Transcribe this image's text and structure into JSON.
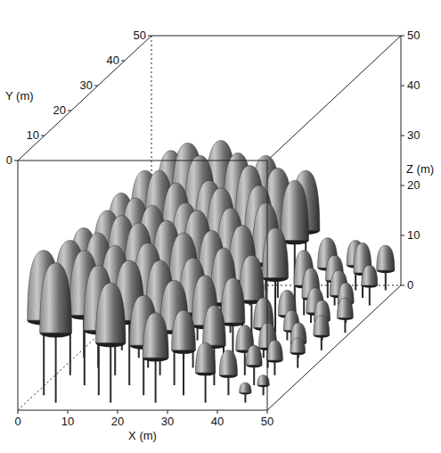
{
  "chart_data": {
    "type": "scatter3d",
    "xlabel": "X (m)",
    "ylabel": "Y (m)",
    "zlabel": "Z (m)",
    "xlim": [
      0,
      50
    ],
    "ylim": [
      0,
      50
    ],
    "zlim": [
      0,
      50
    ],
    "xticks": [
      0,
      10,
      20,
      30,
      40,
      50
    ],
    "yticks": [
      0,
      10,
      20,
      30,
      40,
      50
    ],
    "zticks": [
      0,
      10,
      20,
      30,
      40,
      50
    ],
    "trees": [
      {
        "x": 5,
        "y": 48,
        "height": 28,
        "crown_base": 14,
        "crown_radius": 3
      },
      {
        "x": 15,
        "y": 48,
        "height": 30,
        "crown_base": 15,
        "crown_radius": 3.2
      },
      {
        "x": 24,
        "y": 48,
        "height": 27,
        "crown_base": 14,
        "crown_radius": 3
      },
      {
        "x": 32,
        "y": 48,
        "height": 24,
        "crown_base": 12,
        "crown_radius": 2.8
      },
      {
        "x": 42,
        "y": 48,
        "height": 10,
        "crown_base": 5,
        "crown_radius": 1.8
      },
      {
        "x": 48,
        "y": 48,
        "height": 9,
        "crown_base": 4,
        "crown_radius": 1.8
      },
      {
        "x": 10,
        "y": 45,
        "height": 31,
        "crown_base": 16,
        "crown_radius": 3.3
      },
      {
        "x": 20,
        "y": 45,
        "height": 29,
        "crown_base": 15,
        "crown_radius": 3
      },
      {
        "x": 28,
        "y": 45,
        "height": 26,
        "crown_base": 13,
        "crown_radius": 3
      },
      {
        "x": 38,
        "y": 45,
        "height": 12,
        "crown_base": 6,
        "crown_radius": 2
      },
      {
        "x": 45,
        "y": 45,
        "height": 11,
        "crown_base": 5,
        "crown_radius": 1.8
      },
      {
        "x": 3,
        "y": 42,
        "height": 27,
        "crown_base": 14,
        "crown_radius": 3
      },
      {
        "x": 14,
        "y": 42,
        "height": 30,
        "crown_base": 15,
        "crown_radius": 3.2
      },
      {
        "x": 24,
        "y": 42,
        "height": 28,
        "crown_base": 14,
        "crown_radius": 3
      },
      {
        "x": 33,
        "y": 42,
        "height": 25,
        "crown_base": 13,
        "crown_radius": 2.8
      },
      {
        "x": 41,
        "y": 42,
        "height": 10,
        "crown_base": 5,
        "crown_radius": 1.8
      },
      {
        "x": 48,
        "y": 42,
        "height": 8,
        "crown_base": 4,
        "crown_radius": 1.6
      },
      {
        "x": 8,
        "y": 38,
        "height": 29,
        "crown_base": 15,
        "crown_radius": 3
      },
      {
        "x": 18,
        "y": 38,
        "height": 27,
        "crown_base": 14,
        "crown_radius": 3
      },
      {
        "x": 28,
        "y": 38,
        "height": 26,
        "crown_base": 13,
        "crown_radius": 3
      },
      {
        "x": 37,
        "y": 38,
        "height": 13,
        "crown_base": 6,
        "crown_radius": 2
      },
      {
        "x": 44,
        "y": 38,
        "height": 9,
        "crown_base": 4,
        "crown_radius": 1.8
      },
      {
        "x": 2,
        "y": 35,
        "height": 26,
        "crown_base": 13,
        "crown_radius": 3
      },
      {
        "x": 13,
        "y": 35,
        "height": 28,
        "crown_base": 14,
        "crown_radius": 3
      },
      {
        "x": 22,
        "y": 35,
        "height": 27,
        "crown_base": 14,
        "crown_radius": 3
      },
      {
        "x": 31,
        "y": 35,
        "height": 24,
        "crown_base": 12,
        "crown_radius": 2.8
      },
      {
        "x": 40,
        "y": 35,
        "height": 11,
        "crown_base": 5,
        "crown_radius": 1.8
      },
      {
        "x": 47,
        "y": 35,
        "height": 8,
        "crown_base": 4,
        "crown_radius": 1.6
      },
      {
        "x": 7,
        "y": 31,
        "height": 27,
        "crown_base": 14,
        "crown_radius": 3
      },
      {
        "x": 17,
        "y": 31,
        "height": 26,
        "crown_base": 13,
        "crown_radius": 3
      },
      {
        "x": 26,
        "y": 31,
        "height": 25,
        "crown_base": 13,
        "crown_radius": 2.8
      },
      {
        "x": 35,
        "y": 31,
        "height": 21,
        "crown_base": 11,
        "crown_radius": 2.6
      },
      {
        "x": 43,
        "y": 31,
        "height": 9,
        "crown_base": 4,
        "crown_radius": 1.8
      },
      {
        "x": 49,
        "y": 31,
        "height": 7,
        "crown_base": 3,
        "crown_radius": 1.6
      },
      {
        "x": 3,
        "y": 28,
        "height": 26,
        "crown_base": 13,
        "crown_radius": 3
      },
      {
        "x": 12,
        "y": 28,
        "height": 27,
        "crown_base": 14,
        "crown_radius": 3
      },
      {
        "x": 21,
        "y": 28,
        "height": 26,
        "crown_base": 13,
        "crown_radius": 3
      },
      {
        "x": 30,
        "y": 28,
        "height": 23,
        "crown_base": 12,
        "crown_radius": 2.8
      },
      {
        "x": 39,
        "y": 28,
        "height": 10,
        "crown_base": 5,
        "crown_radius": 1.8
      },
      {
        "x": 46,
        "y": 28,
        "height": 8,
        "crown_base": 4,
        "crown_radius": 1.6
      },
      {
        "x": 8,
        "y": 24,
        "height": 27,
        "crown_base": 14,
        "crown_radius": 3
      },
      {
        "x": 17,
        "y": 24,
        "height": 26,
        "crown_base": 13,
        "crown_radius": 3
      },
      {
        "x": 26,
        "y": 24,
        "height": 24,
        "crown_base": 12,
        "crown_radius": 2.8
      },
      {
        "x": 34,
        "y": 24,
        "height": 19,
        "crown_base": 10,
        "crown_radius": 2.5
      },
      {
        "x": 42,
        "y": 24,
        "height": 8,
        "crown_base": 4,
        "crown_radius": 1.6
      },
      {
        "x": 48,
        "y": 24,
        "height": 7,
        "crown_base": 3,
        "crown_radius": 1.6
      },
      {
        "x": 2,
        "y": 21,
        "height": 26,
        "crown_base": 13,
        "crown_radius": 3
      },
      {
        "x": 13,
        "y": 21,
        "height": 27,
        "crown_base": 14,
        "crown_radius": 3
      },
      {
        "x": 22,
        "y": 21,
        "height": 25,
        "crown_base": 13,
        "crown_radius": 3
      },
      {
        "x": 30,
        "y": 21,
        "height": 22,
        "crown_base": 11,
        "crown_radius": 2.6
      },
      {
        "x": 38,
        "y": 21,
        "height": 12,
        "crown_base": 6,
        "crown_radius": 2
      },
      {
        "x": 45,
        "y": 21,
        "height": 7,
        "crown_base": 3,
        "crown_radius": 1.6
      },
      {
        "x": 7,
        "y": 17,
        "height": 27,
        "crown_base": 14,
        "crown_radius": 3
      },
      {
        "x": 17,
        "y": 17,
        "height": 25,
        "crown_base": 13,
        "crown_radius": 3
      },
      {
        "x": 26,
        "y": 17,
        "height": 22,
        "crown_base": 11,
        "crown_radius": 2.8
      },
      {
        "x": 34,
        "y": 17,
        "height": 18,
        "crown_base": 9,
        "crown_radius": 2.4
      },
      {
        "x": 41,
        "y": 17,
        "height": 9,
        "crown_base": 4,
        "crown_radius": 1.8
      },
      {
        "x": 47,
        "y": 17,
        "height": 6,
        "crown_base": 3,
        "crown_radius": 1.5
      },
      {
        "x": 3,
        "y": 14,
        "height": 27,
        "crown_base": 14,
        "crown_radius": 3.2
      },
      {
        "x": 12,
        "y": 14,
        "height": 26,
        "crown_base": 13,
        "crown_radius": 3
      },
      {
        "x": 21,
        "y": 14,
        "height": 23,
        "crown_base": 12,
        "crown_radius": 2.8
      },
      {
        "x": 30,
        "y": 14,
        "height": 20,
        "crown_base": 10,
        "crown_radius": 2.6
      },
      {
        "x": 38,
        "y": 14,
        "height": 10,
        "crown_base": 5,
        "crown_radius": 1.8
      },
      {
        "x": 44,
        "y": 14,
        "height": 7,
        "crown_base": 3,
        "crown_radius": 1.6
      },
      {
        "x": 8,
        "y": 10,
        "height": 27,
        "crown_base": 14,
        "crown_radius": 3
      },
      {
        "x": 17,
        "y": 10,
        "height": 25,
        "crown_base": 13,
        "crown_radius": 3
      },
      {
        "x": 26,
        "y": 10,
        "height": 21,
        "crown_base": 11,
        "crown_radius": 2.8
      },
      {
        "x": 34,
        "y": 10,
        "height": 16,
        "crown_base": 8,
        "crown_radius": 2.3
      },
      {
        "x": 42,
        "y": 10,
        "height": 8,
        "crown_base": 4,
        "crown_radius": 1.6
      },
      {
        "x": 2,
        "y": 6,
        "height": 29,
        "crown_base": 15,
        "crown_radius": 3.3
      },
      {
        "x": 13,
        "y": 6,
        "height": 26,
        "crown_base": 13,
        "crown_radius": 3
      },
      {
        "x": 22,
        "y": 6,
        "height": 20,
        "crown_base": 10,
        "crown_radius": 2.8
      },
      {
        "x": 30,
        "y": 6,
        "height": 17,
        "crown_base": 9,
        "crown_radius": 2.4
      },
      {
        "x": 39,
        "y": 6,
        "height": 9,
        "crown_base": 4,
        "crown_radius": 1.8
      },
      {
        "x": 46,
        "y": 6,
        "height": 4,
        "crown_base": 2,
        "crown_radius": 1.2
      },
      {
        "x": 6,
        "y": 3,
        "height": 28,
        "crown_base": 14,
        "crown_radius": 3.2
      },
      {
        "x": 17,
        "y": 3,
        "height": 24,
        "crown_base": 12,
        "crown_radius": 3
      },
      {
        "x": 26,
        "y": 3,
        "height": 18,
        "crown_base": 9,
        "crown_radius": 2.6
      },
      {
        "x": 36,
        "y": 3,
        "height": 12,
        "crown_base": 6,
        "crown_radius": 2
      },
      {
        "x": 44,
        "y": 3,
        "height": 4,
        "crown_base": 2,
        "crown_radius": 1.2
      }
    ]
  }
}
